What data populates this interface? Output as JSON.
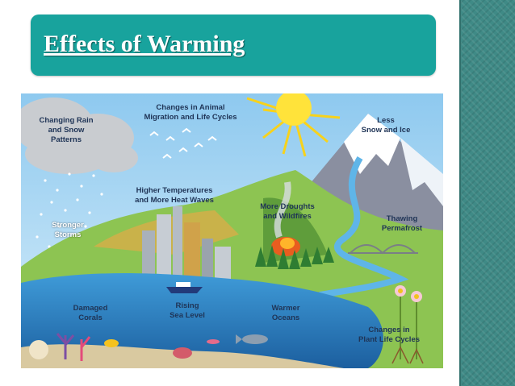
{
  "slide": {
    "title": "Effects of Warming"
  },
  "illustration": {
    "labels": {
      "rain": [
        "Changing Rain",
        "and Snow",
        "Patterns"
      ],
      "migration": [
        "Changes in Animal",
        "Migration and Life Cycles"
      ],
      "snow": [
        "Less",
        "Snow and Ice"
      ],
      "temps": [
        "Higher Temperatures",
        "and More Heat Waves"
      ],
      "droughts": [
        "More Droughts",
        "and Wildfires"
      ],
      "storms": [
        "Stronger",
        "Storms"
      ],
      "permafrost": [
        "Thawing",
        "Permafrost"
      ],
      "corals": [
        "Damaged",
        "Corals"
      ],
      "sealevel": [
        "Rising",
        "Sea Level"
      ],
      "oceans": [
        "Warmer",
        "Oceans"
      ],
      "plants": [
        "Changes in",
        "Plant Life Cycles"
      ]
    }
  }
}
